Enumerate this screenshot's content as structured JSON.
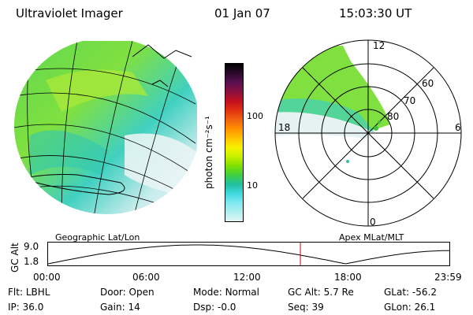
{
  "header": {
    "instrument": "Ultraviolet Imager",
    "date": "01 Jan 07",
    "time": "15:03:30 UT"
  },
  "colorbar": {
    "unit_label": "photon cm⁻²s⁻¹",
    "ticks": [
      "100",
      "10"
    ],
    "colors": [
      "#000000",
      "#2a0a2a",
      "#5a1050",
      "#8a1040",
      "#c01020",
      "#e03010",
      "#f06010",
      "#ff9000",
      "#ffc000",
      "#f8f000",
      "#c8f000",
      "#80e000",
      "#40d040",
      "#20c0a0",
      "#40d8e0",
      "#80e8f0",
      "#b0f0f0",
      "#e0f4f4"
    ]
  },
  "polar": {
    "lat_labels": [
      "60",
      "70",
      "80"
    ],
    "mlt_labels": {
      "top": "12",
      "left": "18",
      "right": "6",
      "bottom": "0"
    }
  },
  "timeline": {
    "left_label": "Geographic Lat/Lon",
    "right_label": "Apex MLat/MLT",
    "y_axis_label": "GC Alt",
    "y_ticks": [
      "9.0",
      "1.8"
    ],
    "x_ticks": [
      "00:00",
      "06:00",
      "12:00",
      "18:00",
      "23:59"
    ],
    "current_time_hours": 15.06,
    "marker_color": "#cc0000"
  },
  "status": {
    "flt_label": "Flt:",
    "flt_value": "LBHL",
    "ip_label": "IP:",
    "ip_value": "36.0",
    "door_label": "Door:",
    "door_value": "Open",
    "gain_label": "Gain:",
    "gain_value": "14",
    "mode_label": "Mode:",
    "mode_value": "Normal",
    "dsp_label": "Dsp:",
    "dsp_value": "-0.0",
    "gcalt_label": "GC Alt:",
    "gcalt_value": "5.7 Re",
    "seq_label": "Seq:",
    "seq_value": "39",
    "glat_label": "GLat:",
    "glat_value": "-56.2",
    "glon_label": "GLon:",
    "glon_value": "26.1"
  }
}
